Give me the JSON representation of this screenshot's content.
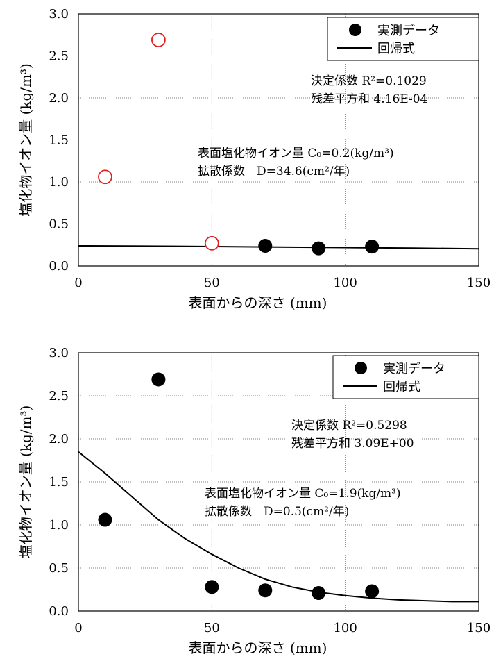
{
  "chart_data": [
    {
      "type": "scatter",
      "xlabel": "表面からの深さ (mm)",
      "ylabel": "塩化物イオン量 (kg/m³)",
      "xlim": [
        0,
        150
      ],
      "ylim": [
        0,
        3.0
      ],
      "xticks": [
        "0",
        "50",
        "100",
        "150"
      ],
      "yticks": [
        "0.0",
        "0.5",
        "1.0",
        "1.5",
        "2.0",
        "2.5",
        "3.0"
      ],
      "grid": true,
      "legend_position": "top-right",
      "legend": [
        "実測データ",
        "回帰式"
      ],
      "measured_filled": {
        "x": [
          70,
          90,
          110
        ],
        "y": [
          0.24,
          0.21,
          0.23
        ]
      },
      "measured_open": {
        "x": [
          10,
          30,
          50
        ],
        "y": [
          1.06,
          2.69,
          0.27
        ]
      },
      "open_marker_color": "#e02020",
      "regression": {
        "x": [
          0,
          25,
          50,
          75,
          100,
          125,
          150
        ],
        "y": [
          0.24,
          0.236,
          0.231,
          0.225,
          0.219,
          0.212,
          0.205
        ]
      },
      "annotations": {
        "r2": "決定係数 R²=0.1029",
        "rss": "残差平方和 4.16E-04",
        "c0": "表面塩化物イオン量 C₀=0.2(kg/m³)",
        "d": "拡散係数　D=34.6(cm²/年)"
      }
    },
    {
      "type": "scatter",
      "xlabel": "表面からの深さ (mm)",
      "ylabel": "塩化物イオン量 (kg/m³)",
      "xlim": [
        0,
        150
      ],
      "ylim": [
        0,
        3.0
      ],
      "xticks": [
        "0",
        "50",
        "100",
        "150"
      ],
      "yticks": [
        "0.0",
        "0.5",
        "1.0",
        "1.5",
        "2.0",
        "2.5",
        "3.0"
      ],
      "grid": true,
      "legend_position": "top-right",
      "legend": [
        "実測データ",
        "回帰式"
      ],
      "measured_filled": {
        "x": [
          10,
          30,
          50,
          70,
          90,
          110
        ],
        "y": [
          1.06,
          2.69,
          0.28,
          0.24,
          0.21,
          0.23
        ]
      },
      "measured_open": {
        "x": [],
        "y": []
      },
      "open_marker_color": "#e02020",
      "regression": {
        "x": [
          0,
          10,
          20,
          30,
          40,
          50,
          60,
          70,
          80,
          90,
          100,
          110,
          120,
          130,
          140,
          150
        ],
        "y": [
          1.85,
          1.6,
          1.33,
          1.06,
          0.84,
          0.66,
          0.5,
          0.37,
          0.28,
          0.22,
          0.18,
          0.15,
          0.13,
          0.12,
          0.11,
          0.11
        ]
      },
      "annotations": {
        "r2": "決定係数 R²=0.5298",
        "rss": "残差平方和 3.09E+00",
        "c0": "表面塩化物イオン量 C₀=1.9(kg/m³)",
        "d": "拡散係数　D=0.5(cm²/年)"
      }
    }
  ]
}
